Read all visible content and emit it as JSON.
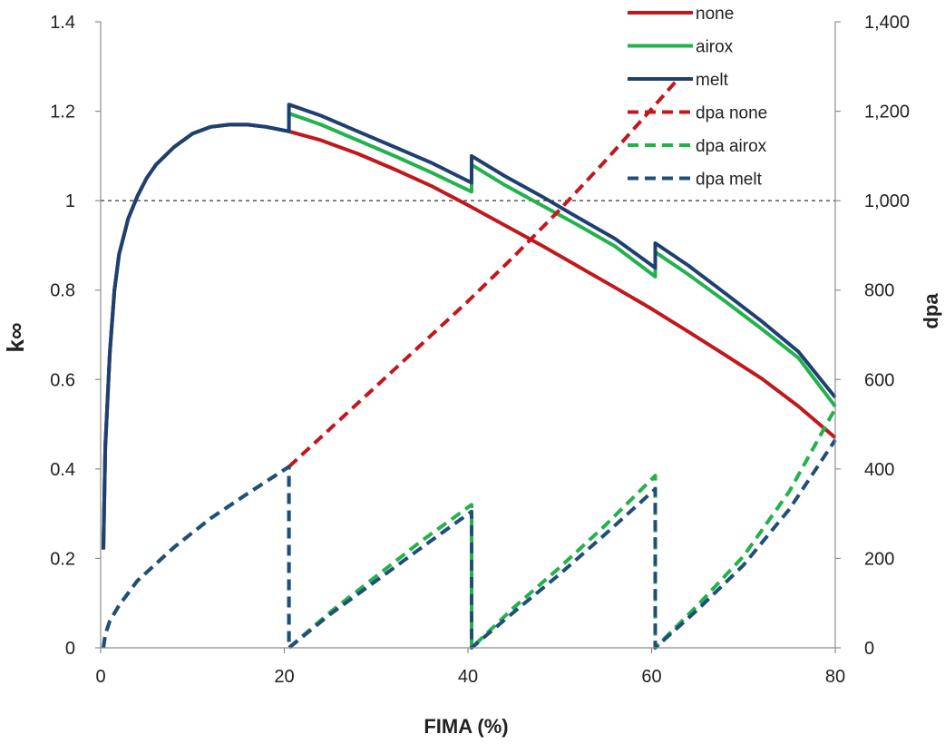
{
  "chart_data": {
    "type": "line",
    "title": "",
    "xlabel": "FIMA (%)",
    "ylabel_left": "k∞",
    "ylabel_right": "dpa",
    "xlim": [
      0,
      80
    ],
    "ylim_left": [
      0,
      1.4
    ],
    "ylim_right": [
      0,
      1400
    ],
    "x_ticks": [
      "0",
      "20",
      "40",
      "60",
      "80"
    ],
    "y_left_ticks": [
      "0",
      "0.2",
      "0.4",
      "0.6",
      "0.8",
      "1",
      "1.2",
      "1.4"
    ],
    "y_right_ticks": [
      "0",
      "200",
      "400",
      "600",
      "800",
      "1,000",
      "1,200",
      "1,400"
    ],
    "reference_line": {
      "axis": "left",
      "y": 1.0,
      "style": "dashed",
      "color": "#333333"
    },
    "grid": false,
    "legend_position": "top-right",
    "series": [
      {
        "name": "none",
        "axis": "left",
        "style": "solid",
        "color": "#c0181c",
        "x": [
          0.3,
          0.5,
          1,
          1.5,
          2,
          3,
          4,
          5,
          6,
          8,
          10,
          12,
          14,
          16,
          18,
          20.5,
          24,
          28,
          32,
          36,
          40,
          44,
          48,
          52,
          56,
          60,
          64,
          68,
          72,
          76,
          80
        ],
        "y": [
          0.22,
          0.45,
          0.66,
          0.8,
          0.88,
          0.96,
          1.01,
          1.05,
          1.08,
          1.12,
          1.15,
          1.165,
          1.17,
          1.17,
          1.165,
          1.155,
          1.135,
          1.105,
          1.07,
          1.033,
          0.99,
          0.945,
          0.9,
          0.853,
          0.806,
          0.758,
          0.707,
          0.655,
          0.602,
          0.54,
          0.47
        ]
      },
      {
        "name": "airox",
        "axis": "left",
        "style": "solid",
        "color": "#22b24c",
        "x": [
          0.3,
          0.5,
          1,
          1.5,
          2,
          3,
          4,
          5,
          6,
          8,
          10,
          12,
          14,
          16,
          18,
          20.5,
          20.5,
          24,
          28,
          32,
          36,
          40.4,
          40.4,
          44,
          48,
          52,
          56,
          60.4,
          60.4,
          64,
          68,
          72,
          76,
          80
        ],
        "y": [
          0.22,
          0.45,
          0.66,
          0.8,
          0.88,
          0.96,
          1.01,
          1.05,
          1.08,
          1.12,
          1.15,
          1.165,
          1.17,
          1.17,
          1.165,
          1.155,
          1.195,
          1.17,
          1.135,
          1.1,
          1.063,
          1.02,
          1.08,
          1.035,
          0.99,
          0.945,
          0.898,
          0.83,
          0.885,
          0.835,
          0.775,
          0.713,
          0.648,
          0.54
        ]
      },
      {
        "name": "melt",
        "axis": "left",
        "style": "solid",
        "color": "#1f3f72",
        "x": [
          0.3,
          0.5,
          1,
          1.5,
          2,
          3,
          4,
          5,
          6,
          8,
          10,
          12,
          14,
          16,
          18,
          20.5,
          20.5,
          24,
          28,
          32,
          36,
          40.4,
          40.4,
          44,
          48,
          52,
          56,
          60.4,
          60.4,
          64,
          68,
          72,
          76,
          80
        ],
        "y": [
          0.22,
          0.45,
          0.66,
          0.8,
          0.88,
          0.96,
          1.01,
          1.05,
          1.08,
          1.12,
          1.15,
          1.165,
          1.17,
          1.17,
          1.165,
          1.155,
          1.215,
          1.19,
          1.155,
          1.12,
          1.085,
          1.04,
          1.1,
          1.055,
          1.01,
          0.962,
          0.915,
          0.85,
          0.905,
          0.855,
          0.793,
          0.73,
          0.662,
          0.56
        ]
      },
      {
        "name": "dpa none",
        "axis": "right",
        "style": "dashed",
        "color": "#c0181c",
        "x": [
          20.5,
          25,
          30,
          35,
          40,
          45,
          50,
          55,
          60,
          63
        ],
        "y": [
          405,
          490,
          585,
          680,
          775,
          875,
          980,
          1090,
          1205,
          1275
        ]
      },
      {
        "name": "dpa airox",
        "axis": "right",
        "style": "dashed",
        "color": "#22b24c",
        "x": [
          0.3,
          0.5,
          1,
          2,
          4,
          8,
          12,
          16,
          20.5,
          20.5,
          25,
          30,
          35,
          40.4,
          40.4,
          45,
          50,
          55,
          60.4,
          60.4,
          65,
          70,
          75,
          80
        ],
        "y": [
          0,
          30,
          60,
          95,
          150,
          225,
          290,
          345,
          405,
          0,
          80,
          160,
          240,
          320,
          0,
          90,
          180,
          275,
          385,
          0,
          95,
          205,
          350,
          535
        ]
      },
      {
        "name": "dpa melt",
        "axis": "right",
        "style": "dashed",
        "color": "#1f4e79",
        "x": [
          0.3,
          0.5,
          1,
          2,
          4,
          8,
          12,
          16,
          20.5,
          20.5,
          25,
          30,
          35,
          40.4,
          40.4,
          45,
          50,
          55,
          60.4,
          60.4,
          65,
          70,
          75,
          80
        ],
        "y": [
          0,
          30,
          60,
          95,
          150,
          225,
          290,
          345,
          405,
          0,
          75,
          150,
          225,
          305,
          0,
          80,
          165,
          255,
          355,
          0,
          85,
          185,
          310,
          465
        ]
      }
    ]
  }
}
